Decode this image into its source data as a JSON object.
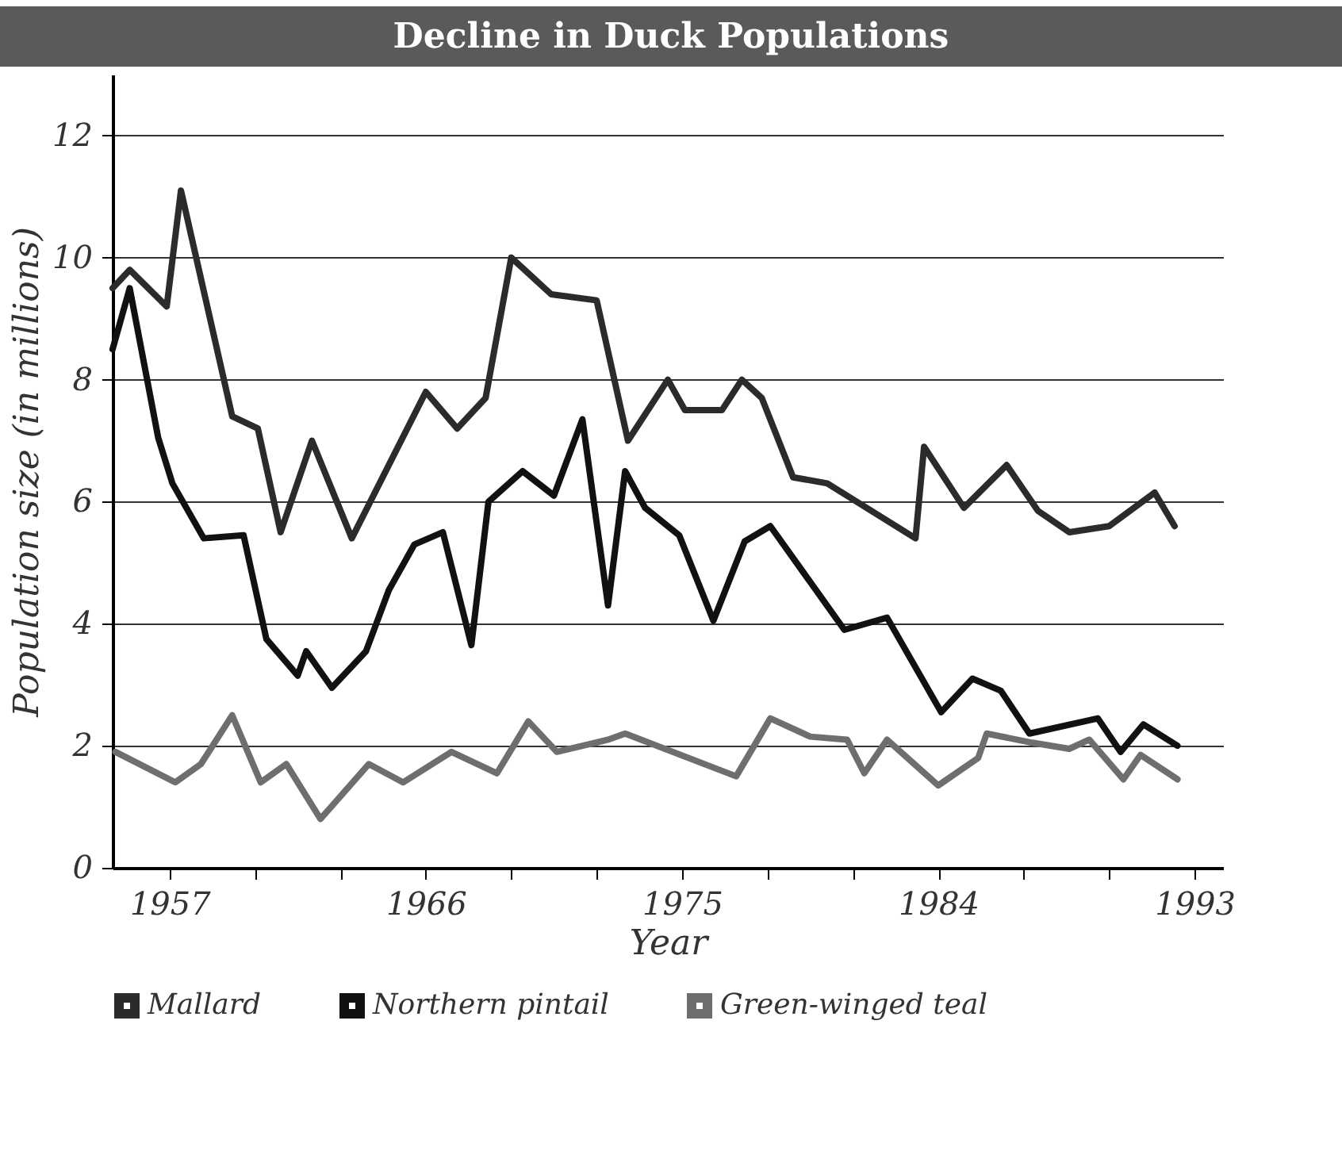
{
  "chart_data": {
    "type": "line",
    "title": "Decline in Duck Populations",
    "xlabel": "Year",
    "ylabel": "Population size (in millions)",
    "xlim": [
      1955,
      1994
    ],
    "ylim": [
      0,
      13
    ],
    "xticks": [
      1957,
      {
        "value": 1960,
        "label": null
      },
      {
        "value": 1963,
        "label": null
      },
      1966,
      {
        "value": 1969,
        "label": null
      },
      {
        "value": 1972,
        "label": null
      },
      1975,
      {
        "value": 1978,
        "label": null
      },
      {
        "value": 1981,
        "label": null
      },
      1984,
      {
        "value": 1987,
        "label": null
      },
      {
        "value": 1990,
        "label": null
      },
      1993
    ],
    "yticks": [
      0,
      2,
      4,
      6,
      8,
      10,
      12
    ],
    "grid": "y",
    "legend": "bottom",
    "line_style": "solid",
    "series": [
      {
        "name": "Mallard",
        "color": "#2b2b2b",
        "x": [
          1955,
          1955.6,
          1956.9,
          1957.4,
          1959.2,
          1960.1,
          1960.9,
          1962.0,
          1963.4,
          1966.0,
          1967.1,
          1968.1,
          1969.0,
          1970.4,
          1972.0,
          1973.1,
          1974.5,
          1975.1,
          1976.4,
          1977.1,
          1977.8,
          1978.9,
          1980.1,
          1983.2,
          1983.5,
          1984.9,
          1986.4,
          1987.5,
          1988.6,
          1990.0,
          1991.6,
          1992.3
        ],
        "values": [
          9.5,
          9.8,
          9.2,
          11.1,
          7.4,
          7.2,
          5.5,
          7.0,
          5.4,
          7.8,
          7.2,
          7.7,
          10.0,
          9.4,
          9.3,
          7.0,
          8.0,
          7.5,
          7.5,
          8.0,
          7.7,
          6.4,
          6.3,
          5.4,
          6.9,
          5.9,
          6.6,
          5.85,
          5.5,
          5.6,
          6.15,
          5.6
        ]
      },
      {
        "name": "Northern pintail",
        "color": "#111111",
        "x": [
          1955,
          1955.6,
          1956.6,
          1957.1,
          1958.2,
          1959.6,
          1960.4,
          1961.5,
          1961.8,
          1962.7,
          1963.9,
          1964.7,
          1965.6,
          1966.6,
          1967.6,
          1968.2,
          1969.4,
          1970.5,
          1971.5,
          1972.4,
          1973.0,
          1973.7,
          1974.9,
          1976.1,
          1977.2,
          1978.1,
          1980.7,
          1982.2,
          1984.1,
          1985.2,
          1986.2,
          1987.2,
          1989.6,
          1990.4,
          1991.2,
          1992.4
        ],
        "values": [
          8.5,
          9.5,
          7.05,
          6.3,
          5.4,
          5.45,
          3.75,
          3.15,
          3.55,
          2.95,
          3.55,
          4.55,
          5.3,
          5.5,
          3.65,
          6.0,
          6.5,
          6.1,
          7.35,
          4.3,
          6.5,
          5.9,
          5.45,
          4.05,
          5.35,
          5.6,
          3.9,
          4.1,
          2.55,
          3.1,
          2.9,
          2.2,
          2.45,
          1.9,
          2.35,
          2.0
        ]
      },
      {
        "name": "Green-winged teal",
        "color": "#6e6e6e",
        "x": [
          1955.1,
          1957.2,
          1958.1,
          1959.2,
          1960.2,
          1961.1,
          1962.3,
          1964.0,
          1965.2,
          1966.9,
          1968.5,
          1969.6,
          1970.6,
          1972.4,
          1973.0,
          1976.9,
          1978.1,
          1979.5,
          1980.8,
          1981.4,
          1982.2,
          1984.0,
          1985.4,
          1985.7,
          1987.3,
          1988.6,
          1989.3,
          1990.5,
          1991.1,
          1992.4
        ],
        "values": [
          1.9,
          1.4,
          1.7,
          2.5,
          1.4,
          1.7,
          0.8,
          1.7,
          1.4,
          1.9,
          1.55,
          2.4,
          1.9,
          2.1,
          2.2,
          1.5,
          2.45,
          2.15,
          2.1,
          1.55,
          2.1,
          1.35,
          1.8,
          2.2,
          2.05,
          1.95,
          2.1,
          1.45,
          1.85,
          1.45
        ]
      }
    ]
  }
}
